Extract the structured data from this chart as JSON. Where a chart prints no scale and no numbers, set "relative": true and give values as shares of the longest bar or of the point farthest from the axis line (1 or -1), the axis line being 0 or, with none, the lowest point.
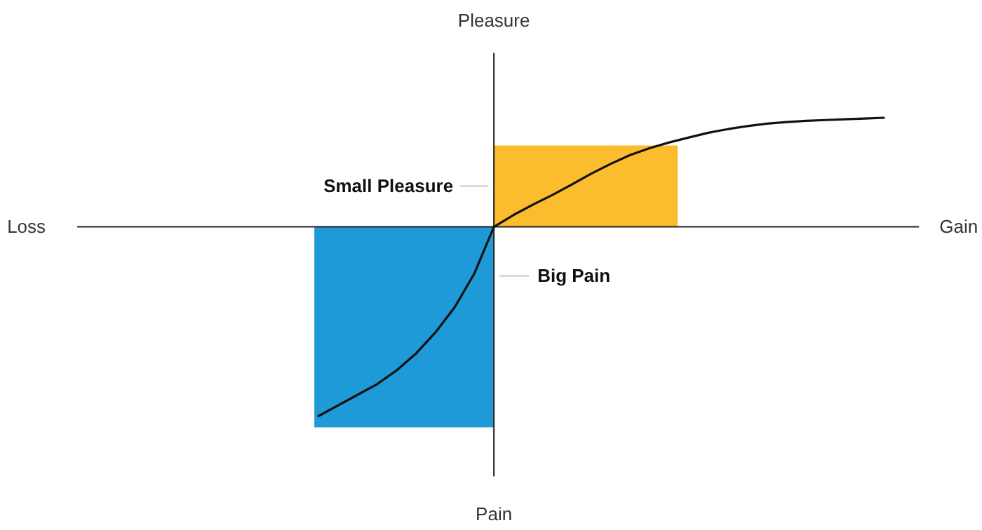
{
  "chart_data": {
    "type": "line",
    "relative": true,
    "annotations": [
      "Loss",
      "Gain",
      "Pleasure",
      "Pain",
      "Small Pleasure",
      "Big Pain"
    ],
    "categories": [
      null,
      null,
      null,
      null,
      null,
      null,
      null,
      null,
      null,
      null,
      null,
      null,
      null,
      null,
      null,
      null,
      null,
      null,
      null,
      null,
      null,
      null,
      null,
      null,
      null,
      null,
      null,
      null,
      null,
      null
    ],
    "series": [
      {
        "color": "#111111",
        "values": [
          -1.0,
          -0.944,
          -0.888,
          -0.832,
          -0.759,
          -0.67,
          -0.558,
          -0.423,
          -0.246,
          0,
          0.062,
          0.117,
          0.168,
          0.224,
          0.281,
          0.333,
          0.38,
          0.416,
          0.446,
          0.472,
          0.497,
          0.516,
          0.532,
          0.545,
          0.553,
          0.56,
          0.564,
          0.568,
          0.572,
          0.576
        ]
      }
    ]
  }
}
